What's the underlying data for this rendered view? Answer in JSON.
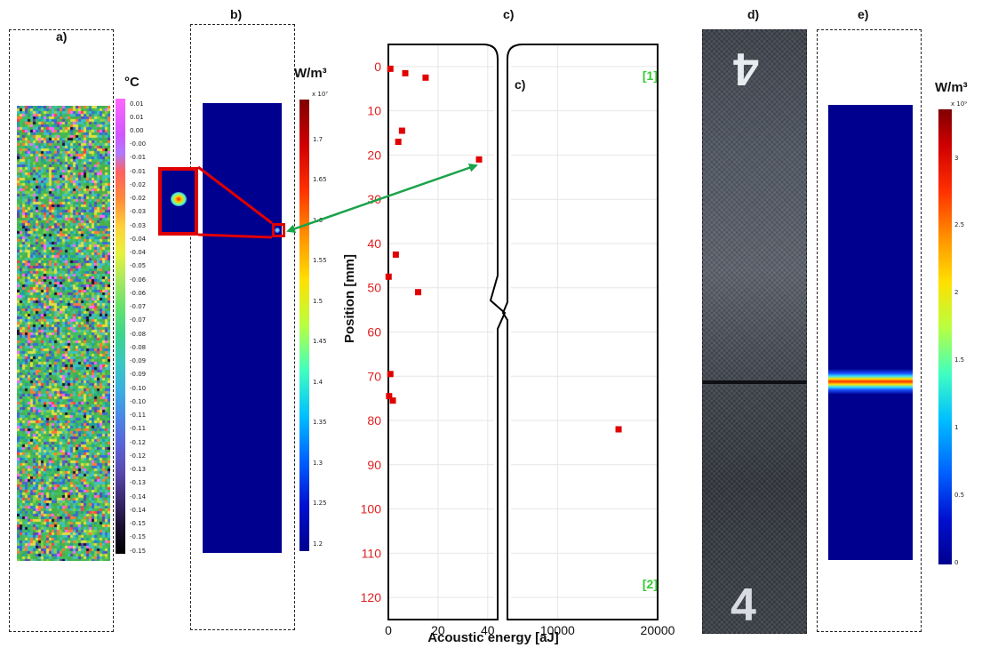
{
  "panels": {
    "a": {
      "label": "a)"
    },
    "b": {
      "label": "b)"
    },
    "c": {
      "label": "c)",
      "inner_label": "c)"
    },
    "d": {
      "label": "d)"
    },
    "e": {
      "label": "e)"
    }
  },
  "colorbar_a": {
    "unit": "°C",
    "ticks": [
      "0.01",
      "0.01",
      "0.00",
      "-0.00",
      "-0.01",
      "-0.01",
      "-0.02",
      "-0.02",
      "-0.03",
      "-0.03",
      "-0.04",
      "-0.04",
      "-0.05",
      "-0.06",
      "-0.06",
      "-0.07",
      "-0.07",
      "-0.08",
      "-0.08",
      "-0.09",
      "-0.09",
      "-0.10",
      "-0.10",
      "-0.11",
      "-0.11",
      "-0.12",
      "-0.12",
      "-0.13",
      "-0.13",
      "-0.14",
      "-0.14",
      "-0.15",
      "-0.15",
      "-0.15"
    ]
  },
  "colorbar_b": {
    "unit": "W/m³",
    "multiplier": "x 10⁷",
    "ticks": [
      "1.7",
      "1.65",
      "1.6",
      "1.55",
      "1.5",
      "1.45",
      "1.4",
      "1.35",
      "1.3",
      "1.25",
      "1.2"
    ]
  },
  "colorbar_e": {
    "unit": "W/m³",
    "multiplier": "x 10⁹",
    "ticks": [
      "3",
      "2.5",
      "2",
      "1.5",
      "1",
      "0.5",
      "0"
    ]
  },
  "chart_data": {
    "type": "scatter",
    "xlabel": "Acoustic energy [aJ]",
    "ylabel": "Position [mm]",
    "ylim": [
      125,
      -5
    ],
    "yticks": [
      0,
      10,
      20,
      30,
      40,
      50,
      60,
      70,
      80,
      90,
      100,
      110,
      120
    ],
    "left_axis": {
      "xlim": [
        0,
        44
      ],
      "xticks": [
        0,
        20,
        40
      ]
    },
    "right_axis": {
      "xlim": [
        5000,
        20000
      ],
      "xticks": [
        10000,
        20000
      ]
    },
    "markers": {
      "top": "[1]",
      "bottom": "[2]"
    },
    "series": [
      {
        "points_left": [
          {
            "x": 0.8,
            "y": 0.5
          },
          {
            "x": 6.8,
            "y": 1.5
          },
          {
            "x": 15.0,
            "y": 2.5
          },
          {
            "x": 5.5,
            "y": 14.5
          },
          {
            "x": 4.0,
            "y": 17.0
          },
          {
            "x": 36.5,
            "y": 21.0
          },
          {
            "x": 3.0,
            "y": 42.5
          },
          {
            "x": 0.1,
            "y": 47.5
          },
          {
            "x": 12.0,
            "y": 51.0
          },
          {
            "x": 0.8,
            "y": 69.5
          },
          {
            "x": 0.3,
            "y": 74.5
          },
          {
            "x": 1.8,
            "y": 75.5
          }
        ],
        "points_right": [
          {
            "x": 16100,
            "y": 82.0
          }
        ]
      }
    ],
    "colors": {
      "points": "#e00000",
      "yticks": "#e02020",
      "markers": "#33cc33",
      "arrow": "#1aa34a",
      "zoom_box": "#e00000"
    }
  }
}
